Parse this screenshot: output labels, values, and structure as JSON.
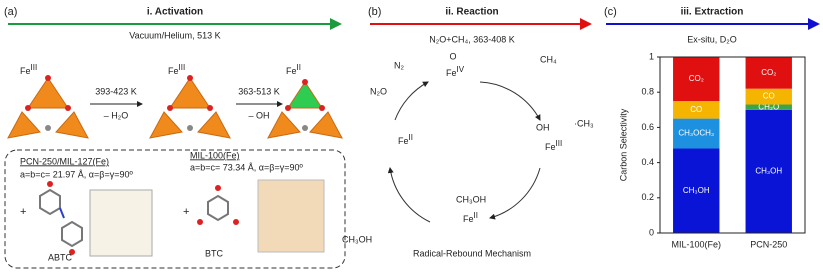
{
  "panel_a": {
    "label": "(a)",
    "title": "i. Activation",
    "condition": "Vacuum/Helium, 513 K",
    "species": [
      {
        "symbol": "Fe",
        "state": "III"
      },
      {
        "symbol": "Fe",
        "state": "III"
      },
      {
        "symbol": "Fe",
        "state": "II"
      }
    ],
    "step1": {
      "temp": "393-423 K",
      "loss": "– H₂O"
    },
    "step2": {
      "temp": "363-513 K",
      "loss": "– OH"
    },
    "box": {
      "mof1": "PCN-250/MIL-127(Fe)",
      "lattice1": "a=b=c= 21.97 Å, α=β=γ=90º",
      "mof2": "MIL-100(Fe)",
      "lattice2": "a=b=c= 73.34 Å, α=β=γ=90º",
      "plus": "+",
      "linker1": "ABTC",
      "linker2": "BTC"
    }
  },
  "panel_b": {
    "label": "(b)",
    "title": "ii. Reaction",
    "condition": "N₂O+CH₄, 363-408 K",
    "n2": "N₂",
    "n2o": "N₂O",
    "oxo": "O",
    "fe4": {
      "symbol": "Fe",
      "state": "IV"
    },
    "ch4": "CH₄",
    "oh": "OH",
    "ch3": "·CH₃",
    "fe3": {
      "symbol": "Fe",
      "state": "III"
    },
    "ch3oh_bound": "CH₃OH",
    "fe2_bottom": {
      "symbol": "Fe",
      "state": "II"
    },
    "ch3oh_out": "CH₃OH",
    "fe2_left": {
      "symbol": "Fe",
      "state": "II"
    },
    "caption": "Radical-Rebound Mechanism"
  },
  "chart_data": {
    "type": "bar",
    "stacked": true,
    "panel_label": "(c)",
    "title": "iii. Extraction",
    "subtitle": "Ex-situ, D₂O",
    "categories": [
      "MIL-100(Fe)",
      "PCN-250"
    ],
    "y_label": "Carbon Selectivity",
    "ylim": [
      0,
      1
    ],
    "yticks": [
      0,
      0.2,
      0.4,
      0.6,
      0.8,
      1
    ],
    "series": [
      {
        "name": "CH₃OH",
        "color": "#0a14d6",
        "values": [
          0.48,
          0.7
        ]
      },
      {
        "name": "CH₃OCH₃",
        "color": "#1e90e0",
        "values": [
          0.17,
          null
        ]
      },
      {
        "name": "CH₂O",
        "color": "#3aa54a",
        "values": [
          null,
          0.03
        ]
      },
      {
        "name": "CO",
        "color": "#f5b400",
        "values": [
          0.1,
          0.09
        ]
      },
      {
        "name": "CO₂",
        "color": "#e01010",
        "values": [
          0.25,
          0.18
        ]
      }
    ]
  }
}
